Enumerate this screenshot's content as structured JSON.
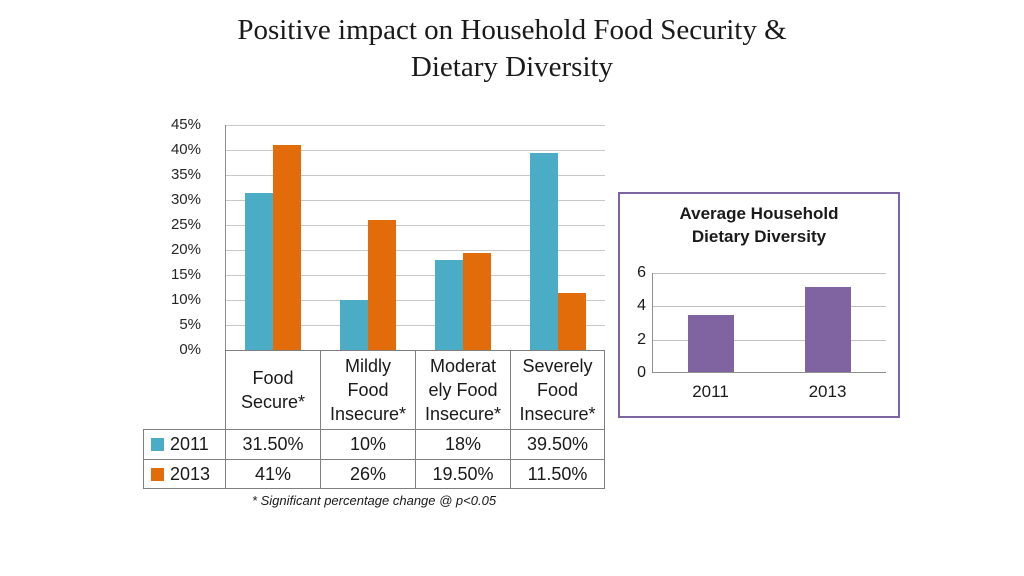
{
  "slide": {
    "title": "Positive impact on Household Food Security &\nDietary Diversity"
  },
  "colors": {
    "series_2011": "#4BACC6",
    "series_2013": "#E36C0A",
    "purple_bar": "#8064A2",
    "purple_border": "#8064A2",
    "gridline": "#C8C8C8",
    "table_border": "#7F7F7F"
  },
  "chart_data": [
    {
      "type": "bar",
      "title": "Positive impact on Household Food Security & Dietary Diversity",
      "categories": [
        "Food\nSecure*",
        "Mildly\nFood\nInsecure*",
        "Moderat\nely Food\nInsecure*",
        "Severely\nFood\nInsecure*"
      ],
      "series": [
        {
          "name": "2011",
          "color": "#4BACC6",
          "values": [
            31.5,
            10,
            18,
            39.5
          ],
          "labels": [
            "31.50%",
            "10%",
            "18%",
            "39.50%"
          ]
        },
        {
          "name": "2013",
          "color": "#E36C0A",
          "values": [
            41,
            26,
            19.5,
            11.5
          ],
          "labels": [
            "41%",
            "26%",
            "19.50%",
            "11.50%"
          ]
        }
      ],
      "ylim": [
        0,
        45
      ],
      "yticks": [
        "45%",
        "40%",
        "35%",
        "30%",
        "25%",
        "20%",
        "15%",
        "10%",
        "5%",
        "0%"
      ],
      "grid": true,
      "legend_position": "data-table-left",
      "data_table": true,
      "footnote": "* Significant percentage change @ p<0.05"
    },
    {
      "type": "bar",
      "title": "Average Household\nDietary Diversity",
      "categories": [
        "2011",
        "2013"
      ],
      "values": [
        3.4,
        5.1
      ],
      "bar_color": "#8064A2",
      "ylim": [
        0,
        6
      ],
      "yticks": [
        "6",
        "4",
        "2",
        "0"
      ],
      "grid": true,
      "legend_position": "none"
    }
  ]
}
